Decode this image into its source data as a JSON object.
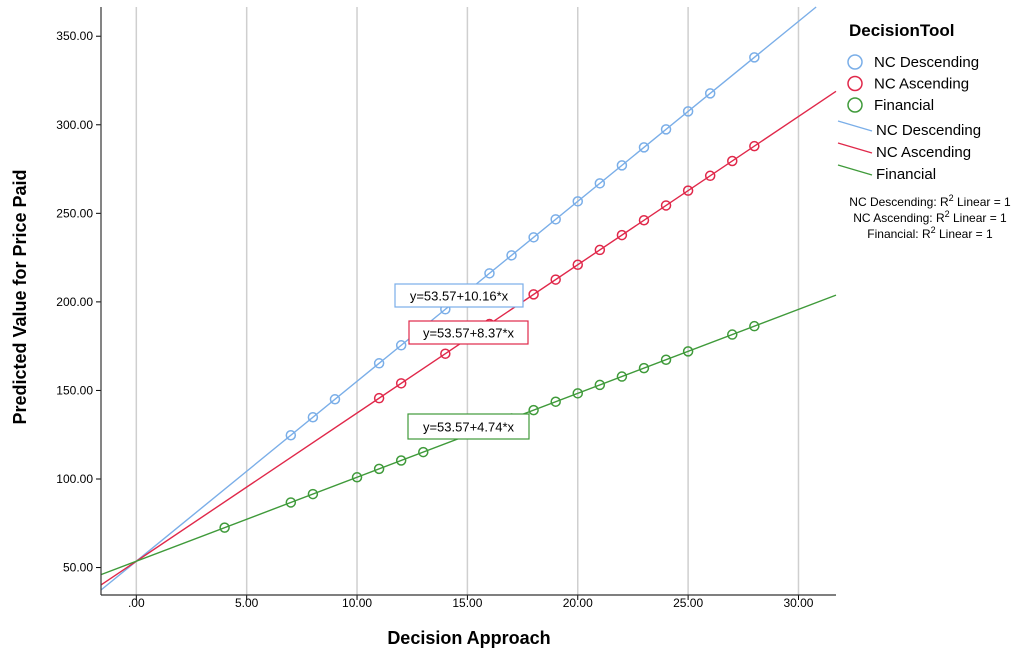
{
  "chart_data": {
    "type": "scatter",
    "xlabel": "Decision Approach",
    "ylabel": "Predicted Value for Price Paid",
    "xlim": [
      -1.6,
      31.7
    ],
    "ylim": [
      34.5,
      366.5
    ],
    "x_ticks": [
      0,
      5,
      10,
      15,
      20,
      25,
      30
    ],
    "x_tick_labels": [
      ".00",
      "5.00",
      "10.00",
      "15.00",
      "20.00",
      "25.00",
      "30.00"
    ],
    "y_ticks": [
      50,
      100,
      150,
      200,
      250,
      300,
      350
    ],
    "y_tick_labels": [
      "50.00",
      "100.00",
      "150.00",
      "200.00",
      "250.00",
      "300.00",
      "350.00"
    ],
    "grid": "vertical",
    "legend_title": "DecisionTool",
    "legend_position": "right",
    "series": [
      {
        "name": "NC Descending",
        "color": "#7aaee8",
        "intercept": 53.57,
        "slope": 10.16,
        "x": [
          7,
          8,
          9,
          11,
          12,
          13,
          14,
          15,
          16,
          17,
          18,
          19,
          20,
          21,
          22,
          23,
          24,
          25,
          26,
          28
        ],
        "y": [
          124.69,
          134.85,
          145.01,
          165.33,
          175.49,
          185.65,
          195.81,
          205.97,
          216.13,
          226.29,
          236.45,
          246.61,
          256.77,
          266.93,
          277.09,
          287.25,
          297.41,
          307.57,
          317.73,
          338.05
        ],
        "equation": "y=53.57+10.16*x",
        "r2_label": "NC Descending: R",
        "r2_suffix": " Linear = 1"
      },
      {
        "name": "NC Ascending",
        "color": "#e0284a",
        "intercept": 53.57,
        "slope": 8.37,
        "x": [
          11,
          12,
          14,
          16,
          18,
          19,
          20,
          21,
          22,
          23,
          24,
          25,
          26,
          27,
          28
        ],
        "y": [
          145.64,
          154.01,
          170.75,
          187.49,
          204.23,
          212.6,
          220.97,
          229.34,
          237.71,
          246.08,
          254.45,
          262.82,
          271.19,
          279.56,
          287.93
        ],
        "equation": "y=53.57+8.37*x",
        "r2_label": "NC Ascending: R",
        "r2_suffix": " Linear = 1"
      },
      {
        "name": "Financial",
        "color": "#3f9a3a",
        "intercept": 53.57,
        "slope": 4.74,
        "x": [
          4,
          7,
          8,
          10,
          11,
          12,
          13,
          17,
          18,
          19,
          20,
          21,
          22,
          23,
          24,
          25,
          27,
          28
        ],
        "y": [
          72.53,
          86.75,
          91.49,
          100.97,
          105.71,
          110.45,
          115.19,
          134.15,
          138.89,
          143.63,
          148.37,
          153.11,
          157.85,
          162.59,
          167.33,
          172.07,
          181.55,
          186.29
        ],
        "equation": "y=53.57+4.74*x",
        "r2_label": "Financial: R",
        "r2_suffix": " Linear = 1"
      }
    ],
    "r2_superscript": "2"
  }
}
